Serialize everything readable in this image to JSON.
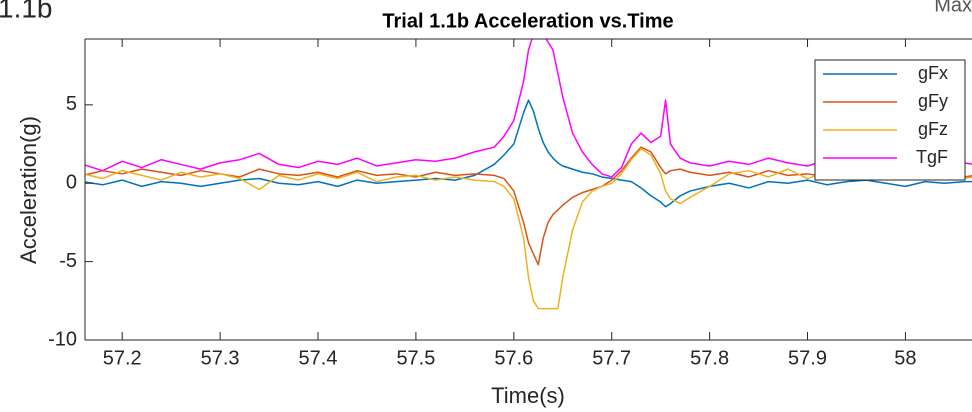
{
  "corner_texts": {
    "left": "1.1b",
    "right": "Max"
  },
  "chart_data": {
    "type": "line",
    "title": "Trial 1.1b Acceleration vs.Time",
    "xlabel": "Time(s)",
    "ylabel": "Acceleration(g)",
    "x": [
      57.16,
      57.18,
      57.2,
      57.22,
      57.24,
      57.26,
      57.28,
      57.3,
      57.32,
      57.34,
      57.36,
      57.38,
      57.4,
      57.42,
      57.44,
      57.46,
      57.48,
      57.5,
      57.52,
      57.54,
      57.56,
      57.58,
      57.59,
      57.6,
      57.61,
      57.615,
      57.62,
      57.625,
      57.63,
      57.635,
      57.64,
      57.645,
      57.65,
      57.66,
      57.67,
      57.68,
      57.69,
      57.7,
      57.71,
      57.72,
      57.73,
      57.74,
      57.75,
      57.755,
      57.76,
      57.77,
      57.78,
      57.8,
      57.82,
      57.84,
      57.86,
      57.88,
      57.9,
      57.92,
      57.94,
      57.96,
      57.98,
      58.0,
      58.02,
      58.04,
      58.06,
      58.07
    ],
    "series": [
      {
        "name": "gFx",
        "color": "#0072bd",
        "values": [
          0.1,
          -0.1,
          0.2,
          -0.2,
          0.1,
          0,
          -0.2,
          0,
          0.2,
          0.3,
          0,
          -0.1,
          0.1,
          -0.2,
          0.2,
          0,
          0.1,
          0.2,
          0.3,
          0.2,
          0.5,
          1.2,
          1.8,
          2.5,
          4.5,
          5.3,
          4.6,
          3.5,
          2.6,
          2.0,
          1.6,
          1.3,
          1.1,
          0.9,
          0.7,
          0.6,
          0.4,
          0.3,
          0.2,
          0.1,
          -0.3,
          -0.8,
          -1.2,
          -1.5,
          -1.3,
          -0.8,
          -0.5,
          -0.2,
          0,
          -0.3,
          0.1,
          0,
          0.2,
          -0.1,
          0.1,
          0.2,
          0,
          -0.2,
          0.1,
          0,
          0.1,
          0.1
        ]
      },
      {
        "name": "gFy",
        "color": "#d95319",
        "values": [
          0.5,
          0.8,
          0.6,
          0.9,
          0.7,
          0.5,
          0.8,
          0.6,
          0.4,
          0.9,
          0.6,
          0.5,
          0.7,
          0.4,
          0.8,
          0.5,
          0.6,
          0.4,
          0.7,
          0.5,
          0.6,
          0.5,
          0.3,
          -0.5,
          -2.5,
          -3.8,
          -4.5,
          -5.2,
          -3.5,
          -2.5,
          -2.0,
          -1.7,
          -1.4,
          -0.9,
          -0.6,
          -0.4,
          -0.2,
          0.2,
          0.8,
          1.6,
          2.3,
          2.0,
          1.0,
          0.6,
          0.8,
          0.9,
          0.7,
          0.5,
          0.7,
          0.4,
          0.8,
          0.5,
          0.6,
          0.4,
          0.7,
          0.5,
          0.4,
          0.6,
          0.3,
          0.5,
          0.4,
          0.5
        ]
      },
      {
        "name": "gFz",
        "color": "#edb120",
        "values": [
          0.6,
          0.3,
          0.8,
          0.5,
          0.2,
          0.7,
          0.4,
          0.6,
          0.3,
          -0.4,
          0.5,
          0.2,
          0.6,
          0.3,
          0.7,
          0.1,
          0.4,
          0.5,
          0.2,
          0.4,
          0.2,
          0.1,
          -0.2,
          -1.0,
          -3.5,
          -6.0,
          -7.5,
          -8,
          -8,
          -8,
          -8,
          -8,
          -6.0,
          -3.0,
          -1.2,
          -0.5,
          -0.2,
          0,
          0.6,
          1.5,
          2.2,
          1.8,
          0.6,
          -0.5,
          -1.0,
          -1.3,
          -0.9,
          -0.2,
          0.6,
          0.8,
          0.4,
          0.9,
          0.3,
          0.7,
          0.5,
          0.8,
          0.3,
          0.6,
          0.2,
          0.5,
          0.3,
          0.4
        ]
      },
      {
        "name": "TgF",
        "color": "#ff00ff",
        "values": [
          1.2,
          0.8,
          1.4,
          1.0,
          1.5,
          1.2,
          0.9,
          1.3,
          1.5,
          1.9,
          1.2,
          1.0,
          1.4,
          1.2,
          1.6,
          1.1,
          1.3,
          1.5,
          1.4,
          1.6,
          2.0,
          2.3,
          3.0,
          4.0,
          6.5,
          8.5,
          9.5,
          10,
          9.5,
          9.0,
          8.5,
          7.0,
          5.5,
          3.2,
          2.0,
          1.2,
          0.6,
          0.4,
          1.0,
          2.5,
          3.2,
          2.6,
          3.0,
          5.3,
          2.5,
          1.6,
          1.3,
          1.1,
          1.4,
          1.2,
          1.6,
          1.3,
          1.1,
          1.5,
          1.2,
          1.4,
          1.0,
          1.3,
          1.5,
          1.2,
          1.3,
          1.2
        ]
      }
    ],
    "xlim": [
      57.162,
      58.068
    ],
    "ylim": [
      -10,
      9.2
    ],
    "xticks": [
      57.2,
      57.3,
      57.4,
      57.5,
      57.6,
      57.7,
      57.8,
      57.9,
      58
    ],
    "yticks": [
      -10,
      -5,
      0,
      5
    ],
    "grid": false,
    "legend": "upper right"
  }
}
